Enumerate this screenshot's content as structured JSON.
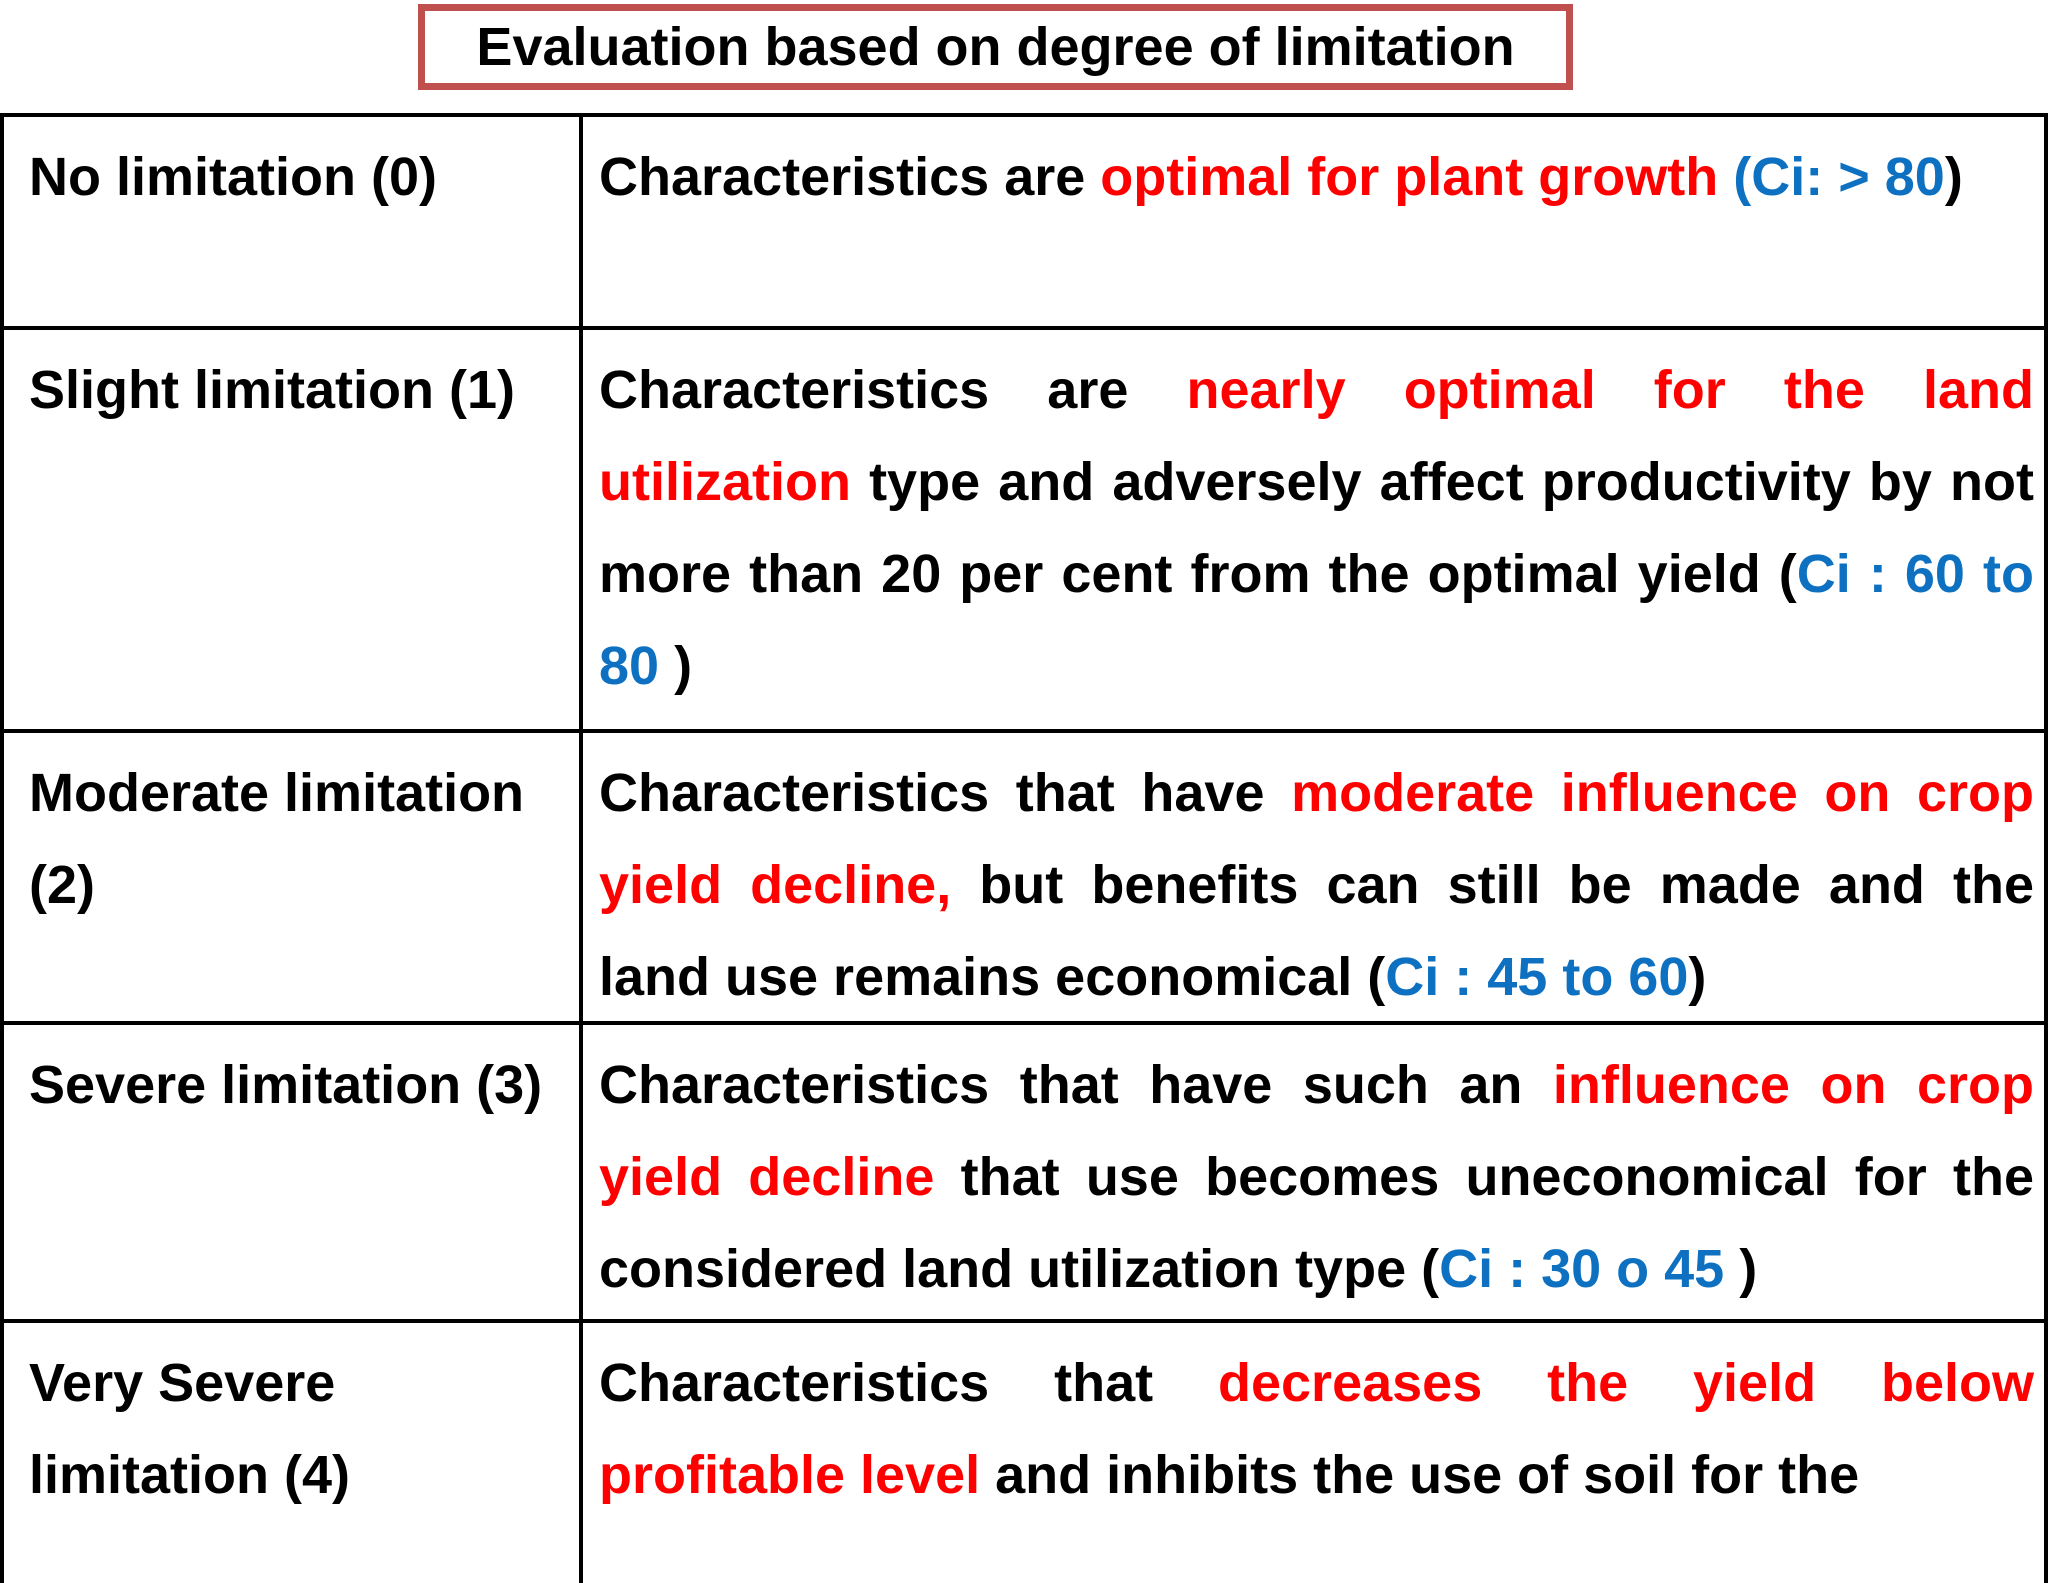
{
  "title": {
    "text": "Evaluation based on degree of limitation"
  },
  "colors": {
    "black": "#000000",
    "red": "#FF0000",
    "blue": "#0D70C0",
    "title_border": "#C0504D",
    "table_border": "#000000",
    "background": "#FFFFFF"
  },
  "table": {
    "rows": [
      {
        "degree": "No limitation (0)",
        "segments": [
          {
            "text": "Characteristics are ",
            "color": "black"
          },
          {
            "text": "optimal for plant growth ",
            "color": "red"
          },
          {
            "text": "(Ci: > 80",
            "color": "blue"
          },
          {
            "text": ")",
            "color": "black"
          }
        ]
      },
      {
        "degree": "Slight limitation (1)",
        "segments": [
          {
            "text": "Characteristics are ",
            "color": "black"
          },
          {
            "text": "nearly optimal for the land utilization ",
            "color": "red"
          },
          {
            "text": "type and adversely affect productivity by not more than 20 per cent  from  the optimal yield (",
            "color": "black"
          },
          {
            "text": "Ci : 60 to 80 ",
            "color": "blue"
          },
          {
            "text": ")",
            "color": "black"
          }
        ]
      },
      {
        "degree": "Moderate limitation (2)",
        "segments": [
          {
            "text": "Characteristics that have ",
            "color": "black"
          },
          {
            "text": "moderate influence on crop yield decline, ",
            "color": "red"
          },
          {
            "text": "but benefits can still be made and the land use remains economical (",
            "color": "black"
          },
          {
            "text": "Ci : 45 to 60",
            "color": "blue"
          },
          {
            "text": ")",
            "color": "black"
          }
        ]
      },
      {
        "degree": "Severe limitation (3)",
        "segments": [
          {
            "text": "Characteristics that have such an ",
            "color": "black"
          },
          {
            "text": "influence on crop yield decline ",
            "color": "red"
          },
          {
            "text": "that use becomes uneconomical for the considered land utilization type  (",
            "color": "black"
          },
          {
            "text": "Ci : 30 o 45 ",
            "color": "blue"
          },
          {
            "text": ")",
            "color": "black"
          }
        ]
      },
      {
        "degree": "Very Severe limitation (4)",
        "segments": [
          {
            "text": "Characteristics that ",
            "color": "black"
          },
          {
            "text": "decreases the yield below profitable level ",
            "color": "red"
          },
          {
            "text": "and inhibits the use of soil for the",
            "color": "black"
          }
        ]
      }
    ]
  }
}
